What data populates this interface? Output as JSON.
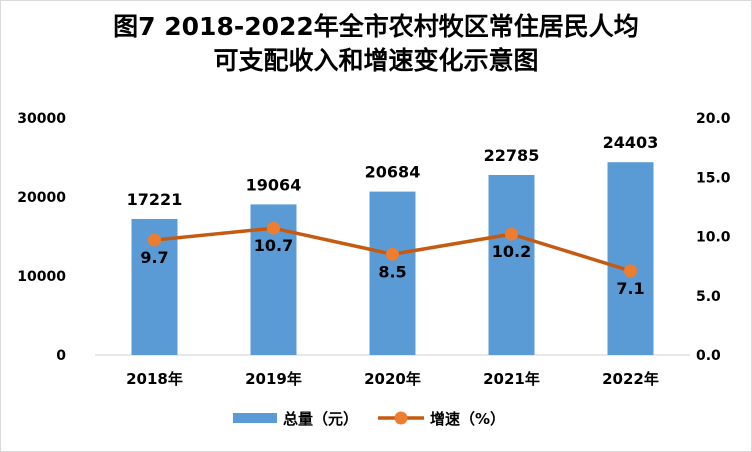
{
  "chart_data": {
    "type": "bar",
    "title_lines": [
      "图7 2018-2022年全市农村牧区常住居民人均",
      "可支配收入和增速变化示意图"
    ],
    "categories": [
      "2018年",
      "2019年",
      "2020年",
      "2021年",
      "2022年"
    ],
    "series": [
      {
        "name": "总量（元）",
        "kind": "bar",
        "axis": "left",
        "values": [
          17221,
          19064,
          20684,
          22785,
          24403
        ],
        "labels": [
          "17221",
          "19064",
          "20684",
          "22785",
          "24403"
        ],
        "color": "#5b9bd5"
      },
      {
        "name": "增速（%）",
        "kind": "line",
        "axis": "right",
        "values": [
          9.7,
          10.7,
          8.5,
          10.2,
          7.1
        ],
        "labels": [
          "9.7",
          "10.7",
          "8.5",
          "10.2",
          "7.1"
        ],
        "color": "#c55a11",
        "marker_color": "#ed7d31"
      }
    ],
    "y_left": {
      "range": [
        0,
        30000
      ],
      "ticks": [
        0,
        10000,
        20000,
        30000
      ],
      "tick_labels": [
        "0",
        "10000",
        "20000",
        "30000"
      ]
    },
    "y_right": {
      "range": [
        0,
        20
      ],
      "ticks": [
        0,
        5,
        10,
        15,
        20
      ],
      "tick_labels": [
        "0.0",
        "5.0",
        "10.0",
        "15.0",
        "20.0"
      ]
    },
    "grid": false,
    "legend_position": "bottom"
  }
}
